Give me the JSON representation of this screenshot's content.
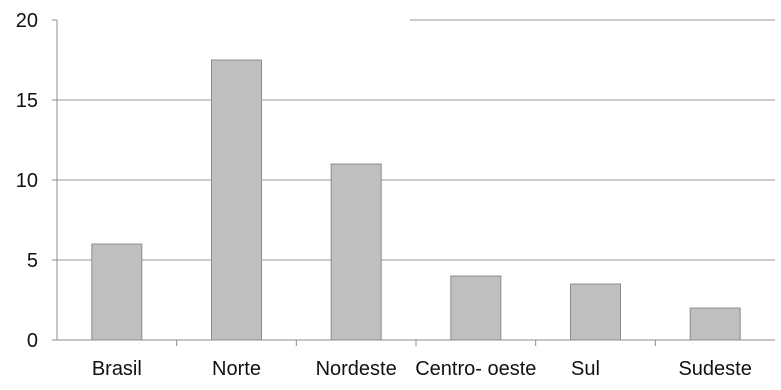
{
  "chart_data": {
    "type": "bar",
    "title": "",
    "xlabel": "",
    "ylabel": "",
    "categories": [
      "Brasil",
      "Norte",
      "Nordeste",
      "Centro- oeste",
      "Sul",
      "Sudeste"
    ],
    "values": [
      6.0,
      17.5,
      11.0,
      4.0,
      3.5,
      2.0
    ],
    "ylim": [
      0,
      20
    ],
    "yticks": [
      0,
      5,
      10,
      15,
      20
    ],
    "ytick_labels": [
      "0",
      "5",
      "10",
      "15",
      "20"
    ],
    "grid": true,
    "legend": "none",
    "colors": {
      "bar_fill": "#bfbfbf",
      "bar_stroke": "#8c8c8c",
      "grid": "#999999",
      "axis": "#8c8c8c"
    }
  }
}
